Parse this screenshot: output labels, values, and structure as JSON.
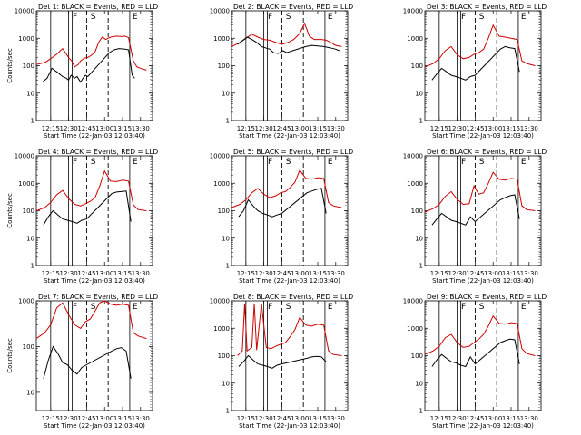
{
  "chart_data": [
    {
      "type": "line",
      "title": "Det 1: BLACK = Events, RED = LLD",
      "ylabel": "Counts/sec",
      "xlabel": "Start Time (22-Jan-03 12:03:40)",
      "x_ticks": [
        "12:15",
        "12:30",
        "12:45",
        "13:00",
        "13:15",
        "13:30"
      ],
      "y_ticks": [
        "1",
        "10",
        "100",
        "1000",
        "10000"
      ],
      "ylim": [
        1,
        10000
      ],
      "y_scale": "log",
      "labels_top": [
        "F",
        "S",
        "E"
      ],
      "series": [
        {
          "color": "#cc0000",
          "x": [
            "12:03",
            "12:10",
            "12:15",
            "12:20",
            "12:25",
            "12:30",
            "12:33",
            "12:35",
            "12:38",
            "12:40",
            "12:43",
            "12:46",
            "12:49",
            "12:52",
            "12:55",
            "12:58",
            "13:01",
            "13:05",
            "13:10",
            "13:14",
            "13:17",
            "13:20",
            "13:24",
            "13:27",
            "13:32",
            "13:35"
          ],
          "y": [
            110,
            130,
            180,
            260,
            420,
            200,
            140,
            90,
            110,
            150,
            190,
            200,
            240,
            320,
            700,
            1100,
            900,
            1100,
            1200,
            1150,
            1200,
            1050,
            150,
            90,
            75,
            70
          ]
        },
        {
          "color": "#000000",
          "x": [
            "12:08",
            "12:12",
            "12:16",
            "12:20",
            "12:25",
            "12:28",
            "12:30",
            "12:32",
            "12:35",
            "12:37",
            "12:40",
            "12:42",
            "12:44",
            "12:46",
            "13:04",
            "13:08",
            "13:12",
            "13:17",
            "13:20",
            "13:23",
            "13:25"
          ],
          "y": [
            25,
            35,
            80,
            60,
            40,
            35,
            30,
            45,
            35,
            40,
            25,
            35,
            45,
            40,
            300,
            380,
            420,
            400,
            380,
            45,
            35
          ]
        }
      ]
    },
    {
      "type": "line",
      "title": "Det 2: BLACK = Events, RED = LLD",
      "ylabel": "",
      "xlabel": "Start Time (22-Jan-03 12:03:40)",
      "x_ticks": [
        "12:15",
        "12:30",
        "12:45",
        "13:00",
        "13:15",
        "13:30"
      ],
      "y_ticks": [
        "1",
        "10",
        "100",
        "1000",
        "10000"
      ],
      "ylim": [
        1,
        10000
      ],
      "y_scale": "log",
      "labels_top": [
        "F",
        "S",
        "E"
      ],
      "series": [
        {
          "color": "#cc0000",
          "x": [
            "12:03",
            "12:10",
            "12:15",
            "12:20",
            "12:25",
            "12:30",
            "12:35",
            "12:40",
            "12:45",
            "12:50",
            "12:55",
            "13:00",
            "13:04",
            "13:08",
            "13:12",
            "13:18",
            "13:22",
            "13:26",
            "13:30",
            "13:35"
          ],
          "y": [
            500,
            700,
            1000,
            1400,
            1100,
            900,
            850,
            700,
            600,
            700,
            900,
            1500,
            3500,
            1200,
            900,
            900,
            850,
            700,
            550,
            500
          ]
        },
        {
          "color": "#000000",
          "x": [
            "12:08",
            "12:12",
            "12:16",
            "12:20",
            "12:24",
            "12:28",
            "12:31",
            "12:35",
            "12:38",
            "12:42",
            "12:46",
            "12:49",
            "13:05",
            "13:10",
            "13:15",
            "13:20",
            "13:25",
            "13:30",
            "13:33"
          ],
          "y": [
            600,
            800,
            1100,
            900,
            700,
            500,
            450,
            400,
            300,
            280,
            350,
            300,
            500,
            550,
            520,
            500,
            450,
            400,
            350
          ]
        }
      ]
    },
    {
      "type": "line",
      "title": "Det 3: BLACK = Events, RED = LLD",
      "ylabel": "",
      "xlabel": "Start Time (22-Jan-03 12:03:40)",
      "x_ticks": [
        "12:15",
        "12:30",
        "12:45",
        "13:00",
        "13:15",
        "13:30"
      ],
      "y_ticks": [
        "1",
        "10",
        "100",
        "1000",
        "10000"
      ],
      "ylim": [
        1,
        10000
      ],
      "y_scale": "log",
      "labels_top": [
        "F",
        "S",
        "E"
      ],
      "series": [
        {
          "color": "#cc0000",
          "x": [
            "12:03",
            "12:10",
            "12:15",
            "12:20",
            "12:25",
            "12:30",
            "12:35",
            "12:40",
            "12:44",
            "12:48",
            "12:52",
            "12:56",
            "13:00",
            "13:05",
            "13:10",
            "13:15",
            "13:20",
            "13:24",
            "13:28",
            "13:35"
          ],
          "y": [
            90,
            120,
            180,
            350,
            500,
            250,
            180,
            200,
            260,
            300,
            400,
            1000,
            3000,
            1200,
            1100,
            1000,
            900,
            150,
            120,
            100
          ]
        },
        {
          "color": "#000000",
          "x": [
            "12:09",
            "12:13",
            "12:17",
            "12:21",
            "12:25",
            "12:29",
            "12:33",
            "12:37",
            "12:41",
            "12:45",
            "13:06",
            "13:10",
            "13:14",
            "13:18",
            "13:22"
          ],
          "y": [
            30,
            50,
            80,
            60,
            45,
            40,
            35,
            30,
            40,
            45,
            400,
            500,
            450,
            420,
            60
          ]
        }
      ]
    },
    {
      "type": "line",
      "title": "Det 4: BLACK = Events, RED = LLD",
      "ylabel": "Counts/sec",
      "xlabel": "Start Time (22-Jan-03 12:03:40)",
      "x_ticks": [
        "12:15",
        "12:30",
        "12:45",
        "13:00",
        "13:15",
        "13:30"
      ],
      "y_ticks": [
        "1",
        "10",
        "100",
        "1000",
        "10000"
      ],
      "ylim": [
        1,
        10000
      ],
      "y_scale": "log",
      "labels_top": [
        "F",
        "S",
        "E"
      ],
      "series": [
        {
          "color": "#cc0000",
          "x": [
            "12:03",
            "12:10",
            "12:15",
            "12:20",
            "12:25",
            "12:30",
            "12:35",
            "12:40",
            "12:44",
            "12:48",
            "12:52",
            "12:56",
            "13:00",
            "13:05",
            "13:10",
            "13:15",
            "13:20",
            "13:24",
            "13:28",
            "13:35"
          ],
          "y": [
            100,
            130,
            200,
            380,
            550,
            280,
            170,
            150,
            180,
            220,
            300,
            800,
            2800,
            1200,
            1150,
            1300,
            1200,
            160,
            110,
            100
          ]
        },
        {
          "color": "#000000",
          "x": [
            "12:09",
            "12:13",
            "12:17",
            "12:21",
            "12:25",
            "12:29",
            "12:33",
            "12:37",
            "12:41",
            "12:45",
            "13:06",
            "13:10",
            "13:14",
            "13:18",
            "13:22"
          ],
          "y": [
            30,
            60,
            100,
            70,
            50,
            45,
            40,
            35,
            45,
            50,
            420,
            480,
            500,
            520,
            40
          ]
        }
      ]
    },
    {
      "type": "line",
      "title": "Det 5: BLACK = Events, RED = LLD",
      "ylabel": "",
      "xlabel": "Start Time (22-Jan-03 12:03:40)",
      "x_ticks": [
        "12:15",
        "12:30",
        "12:45",
        "13:00",
        "13:15",
        "13:30"
      ],
      "y_ticks": [
        "1",
        "10",
        "100",
        "1000",
        "10000"
      ],
      "ylim": [
        1,
        10000
      ],
      "y_scale": "log",
      "labels_top": [
        "F",
        "S",
        "E"
      ],
      "series": [
        {
          "color": "#cc0000",
          "x": [
            "12:03",
            "12:10",
            "12:15",
            "12:20",
            "12:25",
            "12:30",
            "12:35",
            "12:40",
            "12:44",
            "12:48",
            "12:52",
            "12:56",
            "13:00",
            "13:05",
            "13:10",
            "13:15",
            "13:20",
            "13:24",
            "13:28",
            "13:35"
          ],
          "y": [
            130,
            170,
            250,
            450,
            650,
            400,
            300,
            350,
            450,
            500,
            700,
            1100,
            3000,
            1500,
            1400,
            1600,
            1500,
            200,
            150,
            130
          ]
        },
        {
          "color": "#000000",
          "x": [
            "12:09",
            "12:13",
            "12:17",
            "12:21",
            "12:25",
            "12:29",
            "12:33",
            "12:37",
            "12:41",
            "12:45",
            "13:06",
            "13:10",
            "13:14",
            "13:18",
            "13:22"
          ],
          "y": [
            60,
            100,
            250,
            150,
            100,
            80,
            70,
            60,
            70,
            80,
            450,
            520,
            600,
            650,
            80
          ]
        }
      ]
    },
    {
      "type": "line",
      "title": "Det 6: BLACK = Events, RED = LLD",
      "ylabel": "",
      "xlabel": "Start Time (22-Jan-03 12:03:40)",
      "x_ticks": [
        "12:15",
        "12:30",
        "12:45",
        "13:00",
        "13:15",
        "13:30"
      ],
      "y_ticks": [
        "1",
        "10",
        "100",
        "1000",
        "10000"
      ],
      "ylim": [
        1,
        10000
      ],
      "y_scale": "log",
      "labels_top": [
        "F",
        "S",
        "E"
      ],
      "series": [
        {
          "color": "#cc0000",
          "x": [
            "12:03",
            "12:10",
            "12:15",
            "12:20",
            "12:25",
            "12:30",
            "12:35",
            "12:40",
            "12:44",
            "12:48",
            "12:52",
            "12:56",
            "13:00",
            "13:05",
            "13:10",
            "13:15",
            "13:20",
            "13:24",
            "13:28",
            "13:35"
          ],
          "y": [
            90,
            120,
            170,
            330,
            500,
            260,
            170,
            180,
            800,
            400,
            450,
            1000,
            2500,
            1400,
            1300,
            1500,
            1400,
            150,
            110,
            100
          ]
        },
        {
          "color": "#000000",
          "x": [
            "12:09",
            "12:13",
            "12:17",
            "12:21",
            "12:25",
            "12:29",
            "12:33",
            "12:37",
            "12:41",
            "12:45",
            "13:06",
            "13:10",
            "13:14",
            "13:18",
            "13:22"
          ],
          "y": [
            30,
            50,
            80,
            60,
            45,
            40,
            35,
            30,
            60,
            40,
            250,
            300,
            350,
            380,
            50
          ]
        }
      ]
    },
    {
      "type": "line",
      "title": "Det 7: BLACK = Events, RED = LLD",
      "ylabel": "Counts/sec",
      "xlabel": "Start Time (22-Jan-03 12:03:40)",
      "x_ticks": [
        "12:15",
        "12:30",
        "12:45",
        "13:00",
        "13:15",
        "13:30"
      ],
      "y_ticks": [
        "10",
        "100",
        "1000"
      ],
      "ylim": [
        4,
        1000
      ],
      "y_scale": "log",
      "labels_top": [
        "F",
        "S",
        "E"
      ],
      "series": [
        {
          "color": "#cc0000",
          "x": [
            "12:03",
            "12:10",
            "12:15",
            "12:20",
            "12:25",
            "12:30",
            "12:35",
            "12:40",
            "12:44",
            "12:48",
            "12:52",
            "12:56",
            "13:00",
            "13:05",
            "13:10",
            "13:15",
            "13:20",
            "13:24",
            "13:28",
            "13:35"
          ],
          "y": [
            150,
            200,
            300,
            700,
            900,
            500,
            300,
            250,
            350,
            400,
            600,
            900,
            1000,
            850,
            800,
            850,
            800,
            200,
            170,
            150
          ]
        },
        {
          "color": "#000000",
          "x": [
            "12:09",
            "12:13",
            "12:17",
            "12:21",
            "12:25",
            "12:29",
            "12:33",
            "12:37",
            "12:41",
            "12:45",
            "13:06",
            "13:10",
            "13:14",
            "13:18",
            "13:22"
          ],
          "y": [
            20,
            50,
            100,
            70,
            45,
            40,
            30,
            25,
            35,
            40,
            80,
            90,
            95,
            80,
            20
          ]
        }
      ]
    },
    {
      "type": "line",
      "title": "Det 8: BLACK = Events, RED = LLD",
      "ylabel": "",
      "xlabel": "Start Time (22-Jan-03 12:03:40)",
      "x_ticks": [
        "12:15",
        "12:30",
        "12:45",
        "13:00",
        "13:15",
        "13:30"
      ],
      "y_ticks": [
        "1",
        "10",
        "100",
        "1000",
        "10000"
      ],
      "ylim": [
        1,
        10000
      ],
      "y_scale": "log",
      "labels_top": [
        "F",
        "S",
        "E"
      ],
      "series": [
        {
          "color": "#cc0000",
          "x": [
            "12:08",
            "12:12",
            "12:14",
            "12:16",
            "12:20",
            "12:22",
            "12:24",
            "12:28",
            "12:32",
            "12:36",
            "12:40",
            "12:44",
            "12:48",
            "12:52",
            "12:56",
            "13:00",
            "13:05",
            "13:10",
            "13:15",
            "13:20",
            "13:24",
            "13:28",
            "13:35"
          ],
          "y": [
            100,
            150,
            8000,
            150,
            200,
            8000,
            160,
            8000,
            200,
            180,
            220,
            260,
            300,
            500,
            900,
            2500,
            1300,
            1200,
            1400,
            1300,
            150,
            110,
            100
          ]
        },
        {
          "color": "#000000",
          "x": [
            "12:09",
            "12:13",
            "12:17",
            "12:21",
            "12:25",
            "12:29",
            "12:33",
            "12:37",
            "12:41",
            "12:45",
            "13:06",
            "13:10",
            "13:14",
            "13:18",
            "13:22"
          ],
          "y": [
            40,
            60,
            100,
            70,
            50,
            45,
            40,
            35,
            45,
            50,
            80,
            90,
            95,
            90,
            60
          ]
        }
      ]
    },
    {
      "type": "line",
      "title": "Det 9: BLACK = Events, RED = LLD",
      "ylabel": "",
      "xlabel": "Start Time (22-Jan-03 12:03:40)",
      "x_ticks": [
        "12:15",
        "12:30",
        "12:45",
        "13:00",
        "13:15",
        "13:30"
      ],
      "y_ticks": [
        "1",
        "10",
        "100",
        "1000",
        "10000"
      ],
      "ylim": [
        1,
        10000
      ],
      "y_scale": "log",
      "labels_top": [
        "F",
        "S",
        "E"
      ],
      "series": [
        {
          "color": "#cc0000",
          "x": [
            "12:03",
            "12:10",
            "12:15",
            "12:20",
            "12:25",
            "12:30",
            "12:35",
            "12:40",
            "12:44",
            "12:48",
            "12:52",
            "12:56",
            "13:00",
            "13:05",
            "13:10",
            "13:15",
            "13:20",
            "13:24",
            "13:28",
            "13:35"
          ],
          "y": [
            110,
            150,
            220,
            450,
            600,
            300,
            200,
            220,
            300,
            400,
            600,
            1200,
            2800,
            1500,
            1400,
            1600,
            1500,
            180,
            120,
            100
          ]
        },
        {
          "color": "#000000",
          "x": [
            "12:09",
            "12:13",
            "12:17",
            "12:21",
            "12:25",
            "12:29",
            "12:33",
            "12:37",
            "12:41",
            "12:45",
            "13:06",
            "13:10",
            "13:14",
            "13:18",
            "13:22"
          ],
          "y": [
            40,
            70,
            110,
            80,
            60,
            55,
            45,
            40,
            90,
            50,
            300,
            350,
            400,
            380,
            50
          ]
        }
      ]
    }
  ]
}
